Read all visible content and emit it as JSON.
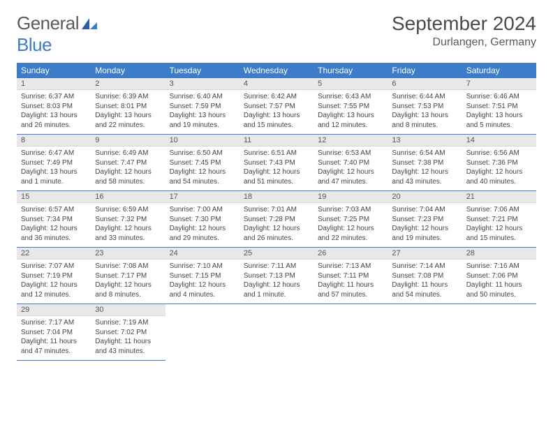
{
  "logo": {
    "text1": "General",
    "text2": "Blue"
  },
  "title": {
    "month": "September 2024",
    "location": "Durlangen, Germany"
  },
  "colors": {
    "header_bg": "#3d7cc9",
    "daynum_bg": "#e8e8e8",
    "border": "#3d7cc9",
    "text": "#444444"
  },
  "weekdays": [
    "Sunday",
    "Monday",
    "Tuesday",
    "Wednesday",
    "Thursday",
    "Friday",
    "Saturday"
  ],
  "days": [
    {
      "n": "1",
      "sunrise": "Sunrise: 6:37 AM",
      "sunset": "Sunset: 8:03 PM",
      "daylight": "Daylight: 13 hours and 26 minutes."
    },
    {
      "n": "2",
      "sunrise": "Sunrise: 6:39 AM",
      "sunset": "Sunset: 8:01 PM",
      "daylight": "Daylight: 13 hours and 22 minutes."
    },
    {
      "n": "3",
      "sunrise": "Sunrise: 6:40 AM",
      "sunset": "Sunset: 7:59 PM",
      "daylight": "Daylight: 13 hours and 19 minutes."
    },
    {
      "n": "4",
      "sunrise": "Sunrise: 6:42 AM",
      "sunset": "Sunset: 7:57 PM",
      "daylight": "Daylight: 13 hours and 15 minutes."
    },
    {
      "n": "5",
      "sunrise": "Sunrise: 6:43 AM",
      "sunset": "Sunset: 7:55 PM",
      "daylight": "Daylight: 13 hours and 12 minutes."
    },
    {
      "n": "6",
      "sunrise": "Sunrise: 6:44 AM",
      "sunset": "Sunset: 7:53 PM",
      "daylight": "Daylight: 13 hours and 8 minutes."
    },
    {
      "n": "7",
      "sunrise": "Sunrise: 6:46 AM",
      "sunset": "Sunset: 7:51 PM",
      "daylight": "Daylight: 13 hours and 5 minutes."
    },
    {
      "n": "8",
      "sunrise": "Sunrise: 6:47 AM",
      "sunset": "Sunset: 7:49 PM",
      "daylight": "Daylight: 13 hours and 1 minute."
    },
    {
      "n": "9",
      "sunrise": "Sunrise: 6:49 AM",
      "sunset": "Sunset: 7:47 PM",
      "daylight": "Daylight: 12 hours and 58 minutes."
    },
    {
      "n": "10",
      "sunrise": "Sunrise: 6:50 AM",
      "sunset": "Sunset: 7:45 PM",
      "daylight": "Daylight: 12 hours and 54 minutes."
    },
    {
      "n": "11",
      "sunrise": "Sunrise: 6:51 AM",
      "sunset": "Sunset: 7:43 PM",
      "daylight": "Daylight: 12 hours and 51 minutes."
    },
    {
      "n": "12",
      "sunrise": "Sunrise: 6:53 AM",
      "sunset": "Sunset: 7:40 PM",
      "daylight": "Daylight: 12 hours and 47 minutes."
    },
    {
      "n": "13",
      "sunrise": "Sunrise: 6:54 AM",
      "sunset": "Sunset: 7:38 PM",
      "daylight": "Daylight: 12 hours and 43 minutes."
    },
    {
      "n": "14",
      "sunrise": "Sunrise: 6:56 AM",
      "sunset": "Sunset: 7:36 PM",
      "daylight": "Daylight: 12 hours and 40 minutes."
    },
    {
      "n": "15",
      "sunrise": "Sunrise: 6:57 AM",
      "sunset": "Sunset: 7:34 PM",
      "daylight": "Daylight: 12 hours and 36 minutes."
    },
    {
      "n": "16",
      "sunrise": "Sunrise: 6:59 AM",
      "sunset": "Sunset: 7:32 PM",
      "daylight": "Daylight: 12 hours and 33 minutes."
    },
    {
      "n": "17",
      "sunrise": "Sunrise: 7:00 AM",
      "sunset": "Sunset: 7:30 PM",
      "daylight": "Daylight: 12 hours and 29 minutes."
    },
    {
      "n": "18",
      "sunrise": "Sunrise: 7:01 AM",
      "sunset": "Sunset: 7:28 PM",
      "daylight": "Daylight: 12 hours and 26 minutes."
    },
    {
      "n": "19",
      "sunrise": "Sunrise: 7:03 AM",
      "sunset": "Sunset: 7:25 PM",
      "daylight": "Daylight: 12 hours and 22 minutes."
    },
    {
      "n": "20",
      "sunrise": "Sunrise: 7:04 AM",
      "sunset": "Sunset: 7:23 PM",
      "daylight": "Daylight: 12 hours and 19 minutes."
    },
    {
      "n": "21",
      "sunrise": "Sunrise: 7:06 AM",
      "sunset": "Sunset: 7:21 PM",
      "daylight": "Daylight: 12 hours and 15 minutes."
    },
    {
      "n": "22",
      "sunrise": "Sunrise: 7:07 AM",
      "sunset": "Sunset: 7:19 PM",
      "daylight": "Daylight: 12 hours and 12 minutes."
    },
    {
      "n": "23",
      "sunrise": "Sunrise: 7:08 AM",
      "sunset": "Sunset: 7:17 PM",
      "daylight": "Daylight: 12 hours and 8 minutes."
    },
    {
      "n": "24",
      "sunrise": "Sunrise: 7:10 AM",
      "sunset": "Sunset: 7:15 PM",
      "daylight": "Daylight: 12 hours and 4 minutes."
    },
    {
      "n": "25",
      "sunrise": "Sunrise: 7:11 AM",
      "sunset": "Sunset: 7:13 PM",
      "daylight": "Daylight: 12 hours and 1 minute."
    },
    {
      "n": "26",
      "sunrise": "Sunrise: 7:13 AM",
      "sunset": "Sunset: 7:11 PM",
      "daylight": "Daylight: 11 hours and 57 minutes."
    },
    {
      "n": "27",
      "sunrise": "Sunrise: 7:14 AM",
      "sunset": "Sunset: 7:08 PM",
      "daylight": "Daylight: 11 hours and 54 minutes."
    },
    {
      "n": "28",
      "sunrise": "Sunrise: 7:16 AM",
      "sunset": "Sunset: 7:06 PM",
      "daylight": "Daylight: 11 hours and 50 minutes."
    },
    {
      "n": "29",
      "sunrise": "Sunrise: 7:17 AM",
      "sunset": "Sunset: 7:04 PM",
      "daylight": "Daylight: 11 hours and 47 minutes."
    },
    {
      "n": "30",
      "sunrise": "Sunrise: 7:19 AM",
      "sunset": "Sunset: 7:02 PM",
      "daylight": "Daylight: 11 hours and 43 minutes."
    }
  ]
}
